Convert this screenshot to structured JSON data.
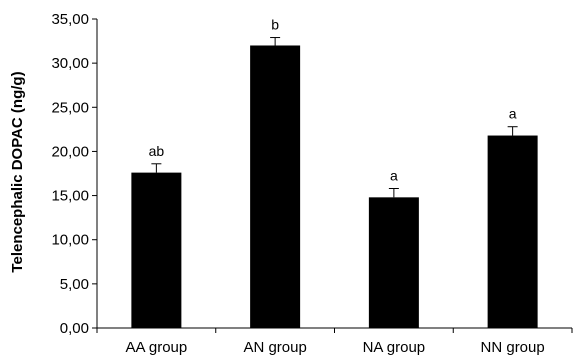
{
  "chart_data": {
    "type": "bar",
    "title": "",
    "xlabel": "",
    "ylabel": "Telencephalic DOPAC (ng/g)",
    "ylim": [
      0,
      35
    ],
    "yticks": [
      0,
      5,
      10,
      15,
      20,
      25,
      30,
      35
    ],
    "ytick_labels": [
      "0,00",
      "5,00",
      "10,00",
      "15,00",
      "20,00",
      "25,00",
      "30,00",
      "35,00"
    ],
    "categories": [
      "AA group",
      "AN group",
      "NA group",
      "NN group"
    ],
    "values": [
      17.6,
      32.0,
      14.8,
      21.8
    ],
    "errors": [
      1.0,
      0.9,
      1.0,
      1.0
    ],
    "significance_labels": [
      "ab",
      "b",
      "a",
      "a"
    ],
    "bar_color": "#000000",
    "grid": false,
    "legend": "none"
  }
}
